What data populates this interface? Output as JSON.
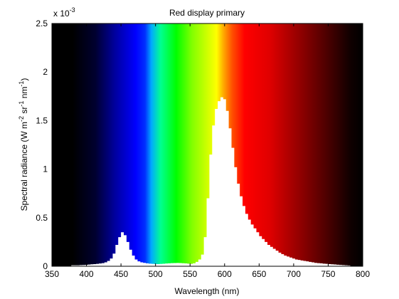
{
  "chart_data": {
    "type": "area",
    "title": "Red display primary",
    "xlabel": "Wavelength (nm)",
    "ylabel_parts": [
      "Spectral radiance (W m",
      "-2",
      " sr",
      "-1",
      " nm",
      "-1",
      ")"
    ],
    "y_exponent_prefix": "x 10",
    "y_exponent_power": "-3",
    "xlim": [
      350,
      800
    ],
    "ylim": [
      0,
      2.5
    ],
    "x_ticks": [
      350,
      400,
      450,
      500,
      550,
      600,
      650,
      700,
      750,
      800
    ],
    "x_tick_labels": [
      "350",
      "400",
      "450",
      "500",
      "550",
      "600",
      "650",
      "700",
      "750",
      "800"
    ],
    "y_ticks": [
      0,
      0.5,
      1,
      1.5,
      2,
      2.5
    ],
    "y_tick_labels": [
      "0",
      "0.5",
      "1",
      "1.5",
      "2",
      "2.5"
    ],
    "grid": false,
    "background": "visible spectrum color gradient",
    "fill_color": "#ffffff",
    "x": [
      380,
      384,
      388,
      392,
      396,
      400,
      404,
      408,
      412,
      416,
      420,
      424,
      428,
      432,
      436,
      440,
      444,
      448,
      452,
      456,
      460,
      464,
      468,
      472,
      476,
      480,
      484,
      488,
      492,
      496,
      500,
      504,
      508,
      512,
      516,
      520,
      524,
      528,
      532,
      536,
      540,
      544,
      548,
      552,
      556,
      560,
      564,
      568,
      572,
      576,
      580,
      584,
      588,
      592,
      596,
      600,
      604,
      608,
      612,
      616,
      620,
      624,
      628,
      632,
      636,
      640,
      644,
      648,
      652,
      656,
      660,
      664,
      668,
      672,
      676,
      680,
      684,
      688,
      692,
      696,
      700,
      704,
      708,
      712,
      716,
      720,
      724,
      728,
      732,
      736,
      740,
      744,
      748,
      752,
      756,
      760,
      764,
      768,
      772,
      776,
      780
    ],
    "y": [
      0.01,
      0.01,
      0.01,
      0.012,
      0.013,
      0.015,
      0.017,
      0.02,
      0.022,
      0.025,
      0.028,
      0.032,
      0.04,
      0.055,
      0.08,
      0.13,
      0.22,
      0.3,
      0.35,
      0.32,
      0.25,
      0.17,
      0.11,
      0.07,
      0.05,
      0.04,
      0.035,
      0.03,
      0.027,
      0.025,
      0.023,
      0.022,
      0.024,
      0.026,
      0.028,
      0.03,
      0.032,
      0.033,
      0.034,
      0.033,
      0.031,
      0.029,
      0.027,
      0.025,
      0.03,
      0.045,
      0.07,
      0.12,
      0.3,
      0.7,
      1.15,
      1.45,
      1.62,
      1.7,
      1.74,
      1.72,
      1.6,
      1.42,
      1.22,
      1.02,
      0.85,
      0.72,
      0.62,
      0.54,
      0.48,
      0.43,
      0.39,
      0.35,
      0.31,
      0.28,
      0.25,
      0.22,
      0.2,
      0.18,
      0.16,
      0.14,
      0.125,
      0.11,
      0.1,
      0.09,
      0.08,
      0.07,
      0.065,
      0.06,
      0.055,
      0.05,
      0.045,
      0.04,
      0.035,
      0.032,
      0.03,
      0.027,
      0.025,
      0.022,
      0.02,
      0.018,
      0.016,
      0.014,
      0.012,
      0.01,
      0.008
    ]
  }
}
